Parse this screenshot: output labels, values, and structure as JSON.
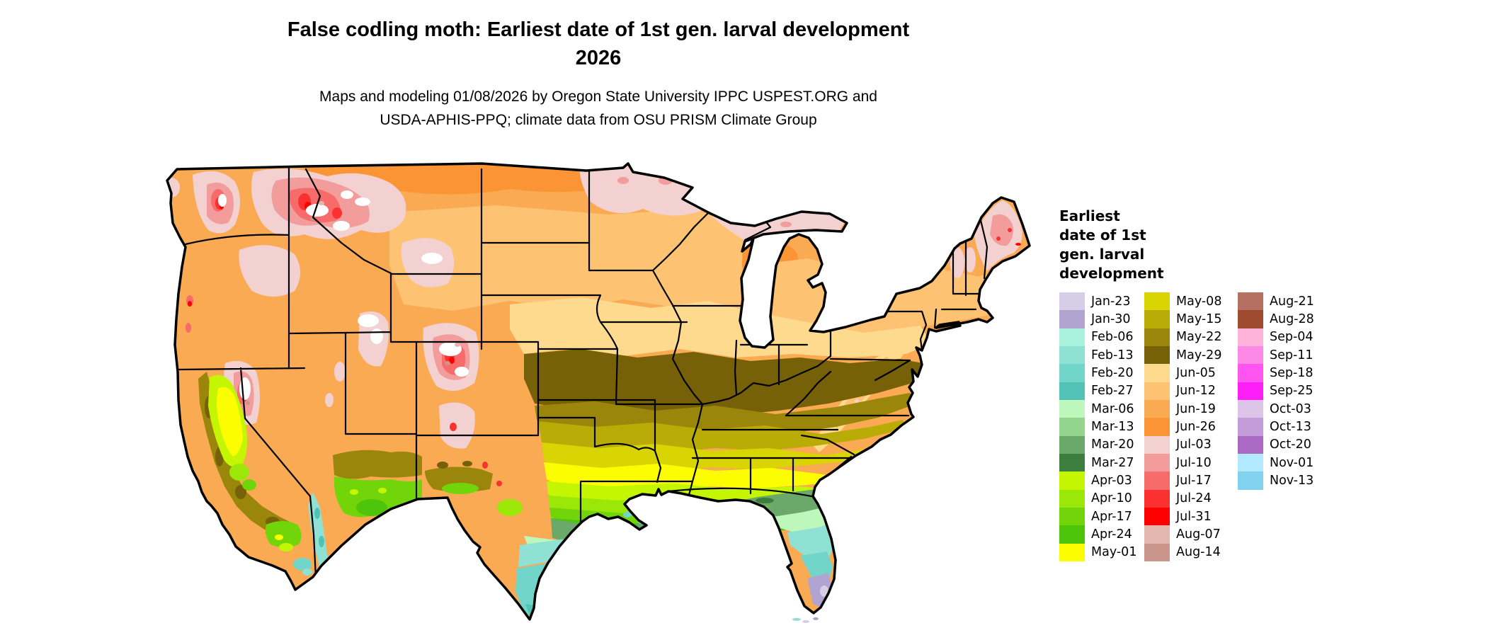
{
  "header": {
    "title_line1": "False codling moth: Earliest date of 1st gen. larval development",
    "title_line2": "2026",
    "subtitle_line1": "Maps and modeling 01/08/2026 by Oregon State University IPPC USPEST.ORG and",
    "subtitle_line2": "USDA-APHIS-PPQ; climate data from OSU PRISM Climate Group"
  },
  "legend": {
    "title": "Earliest\ndate of 1st\ngen. larval\ndevelopment",
    "columns": [
      [
        {
          "label": "Jan-23",
          "color": "#d6cee8"
        },
        {
          "label": "Jan-30",
          "color": "#b1a4d0"
        },
        {
          "label": "Feb-06",
          "color": "#abf2dd"
        },
        {
          "label": "Feb-13",
          "color": "#8fe1d3"
        },
        {
          "label": "Feb-20",
          "color": "#72d5c9"
        },
        {
          "label": "Feb-27",
          "color": "#52c1b6"
        },
        {
          "label": "Mar-06",
          "color": "#bef7bc"
        },
        {
          "label": "Mar-13",
          "color": "#94d58e"
        },
        {
          "label": "Mar-20",
          "color": "#6ba96a"
        },
        {
          "label": "Mar-27",
          "color": "#3d7e3f"
        },
        {
          "label": "Apr-03",
          "color": "#c4f603"
        },
        {
          "label": "Apr-10",
          "color": "#9be707"
        },
        {
          "label": "Apr-17",
          "color": "#72d509"
        },
        {
          "label": "Apr-24",
          "color": "#4dc50b"
        },
        {
          "label": "May-01",
          "color": "#fdfd02"
        }
      ],
      [
        {
          "label": "May-08",
          "color": "#d9d403"
        },
        {
          "label": "May-15",
          "color": "#b9ac06"
        },
        {
          "label": "May-22",
          "color": "#99860b"
        },
        {
          "label": "May-29",
          "color": "#776108"
        },
        {
          "label": "Jun-05",
          "color": "#fdda8e"
        },
        {
          "label": "Jun-12",
          "color": "#fdc272"
        },
        {
          "label": "Jun-19",
          "color": "#fbaa54"
        },
        {
          "label": "Jun-26",
          "color": "#fb9434"
        },
        {
          "label": "Jul-03",
          "color": "#f3d1d1"
        },
        {
          "label": "Jul-10",
          "color": "#f39c9c"
        },
        {
          "label": "Jul-17",
          "color": "#f76b6b"
        },
        {
          "label": "Jul-24",
          "color": "#fb3131"
        },
        {
          "label": "Jul-31",
          "color": "#fe0000"
        },
        {
          "label": "Aug-07",
          "color": "#e3b7ae"
        },
        {
          "label": "Aug-14",
          "color": "#ca958b"
        }
      ],
      [
        {
          "label": "Aug-21",
          "color": "#b67061"
        },
        {
          "label": "Aug-28",
          "color": "#9f4b2f"
        },
        {
          "label": "Sep-04",
          "color": "#feb4da"
        },
        {
          "label": "Sep-11",
          "color": "#fe88e5"
        },
        {
          "label": "Sep-18",
          "color": "#fe54f0"
        },
        {
          "label": "Sep-25",
          "color": "#fe1ff8"
        },
        {
          "label": "Oct-03",
          "color": "#ddc4e9"
        },
        {
          "label": "Oct-13",
          "color": "#c39cd9"
        },
        {
          "label": "Oct-20",
          "color": "#aa69c3"
        },
        {
          "label": "Nov-01",
          "color": "#b3e9fe"
        },
        {
          "label": "Nov-13",
          "color": "#80d2ef"
        }
      ]
    ]
  },
  "map": {
    "background_color": "#ffffff",
    "boundary_color": "#000000",
    "base_fill": "#fbaa54"
  }
}
